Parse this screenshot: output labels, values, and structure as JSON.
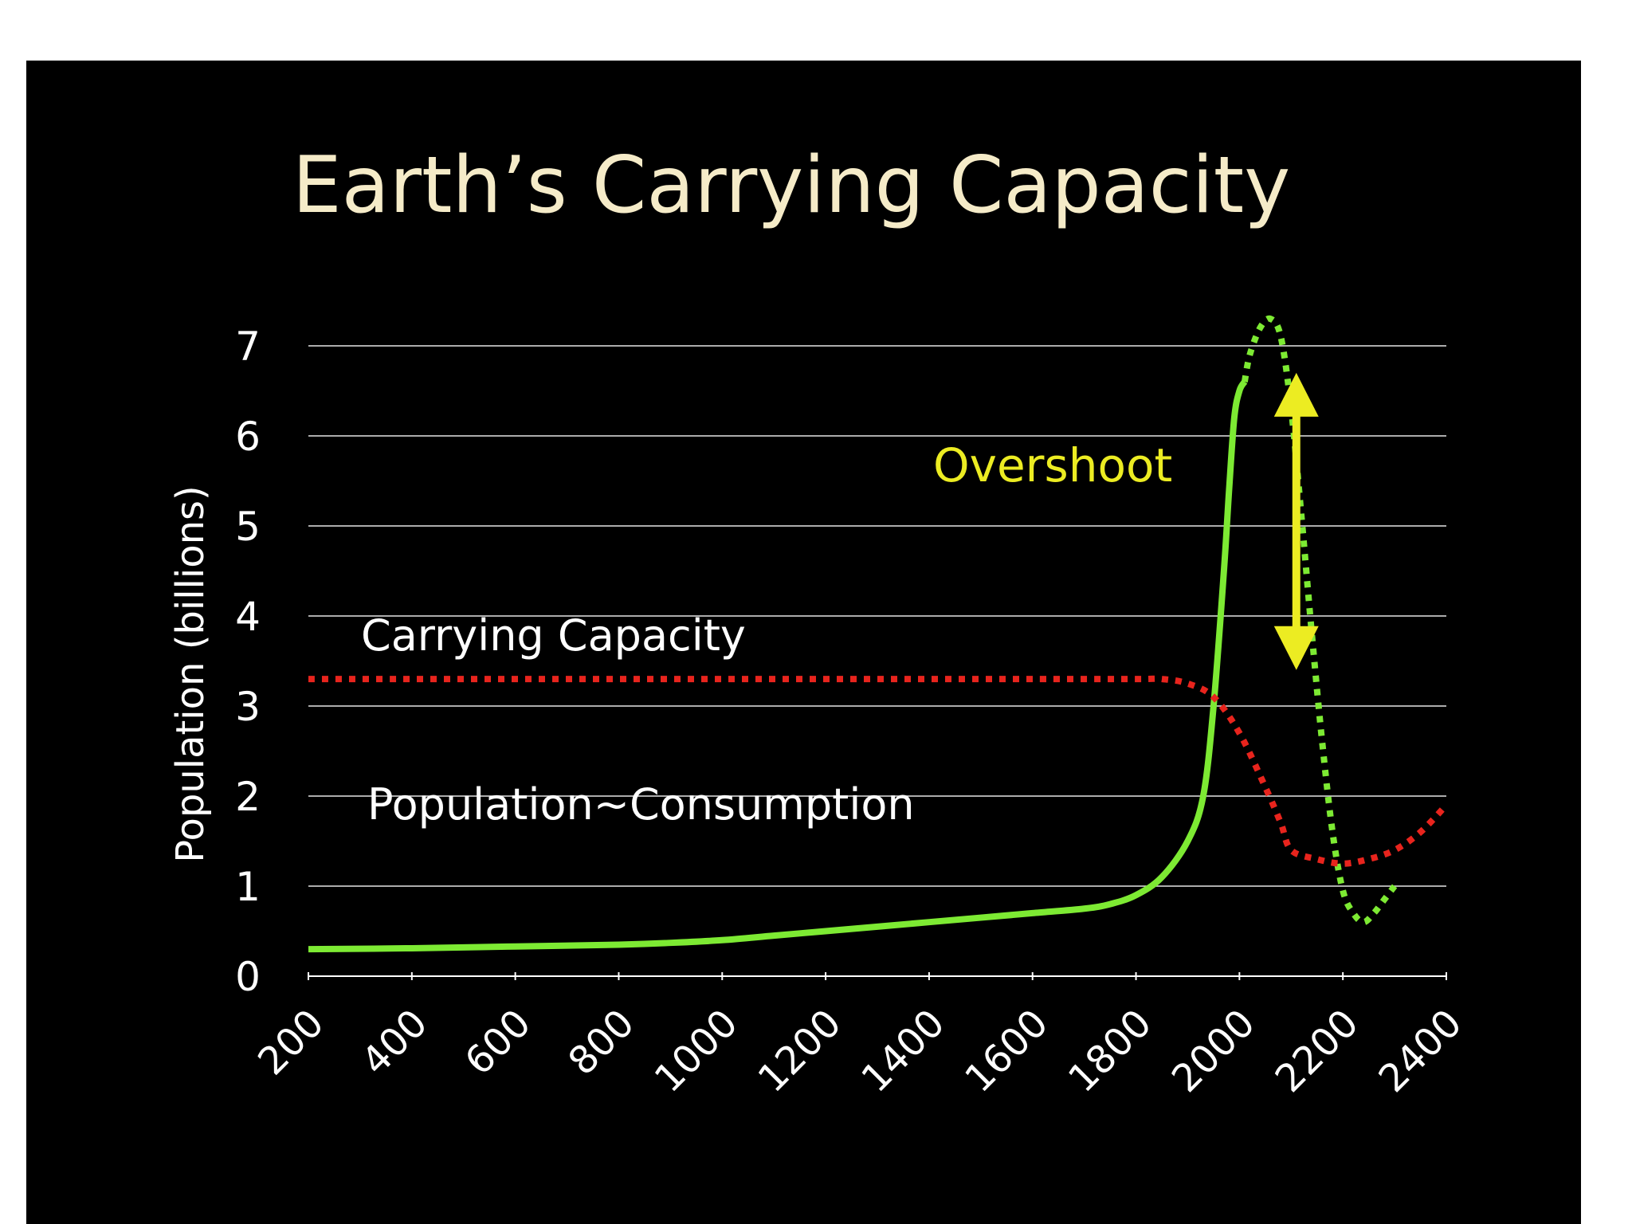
{
  "chart_data": {
    "type": "line",
    "title": "Earth’s Carrying Capacity",
    "ylabel": "Population (billions)",
    "xlabel": "",
    "xlim": [
      200,
      2400
    ],
    "ylim": [
      0,
      7
    ],
    "xticks": [
      "200",
      "400",
      "600",
      "800",
      "1000",
      "1200",
      "1400",
      "1600",
      "1800",
      "2000",
      "2200",
      "2400"
    ],
    "yticks": [
      "0",
      "1",
      "2",
      "3",
      "4",
      "5",
      "6",
      "7"
    ],
    "grid": true,
    "annotations": {
      "carrying_capacity_label": "Carrying Capacity",
      "population_label": "Population~Consumption",
      "overshoot_label": "Overshoot"
    },
    "colors": {
      "background": "#000000",
      "title": "#f5ebc8",
      "text": "#ffffff",
      "population": "#7dea33",
      "carrying_capacity": "#e8241d",
      "overshoot": "#ecec22",
      "grid": "#ffffff"
    },
    "series": [
      {
        "key": "population_actual",
        "style": "solid",
        "x": [
          200,
          400,
          600,
          800,
          900,
          1000,
          1100,
          1200,
          1300,
          1400,
          1500,
          1600,
          1700,
          1750,
          1800,
          1850,
          1900,
          1930,
          1950,
          1970,
          1980,
          1990,
          2000,
          2010
        ],
        "y": [
          0.3,
          0.31,
          0.33,
          0.35,
          0.37,
          0.4,
          0.45,
          0.5,
          0.55,
          0.6,
          0.65,
          0.7,
          0.75,
          0.8,
          0.9,
          1.1,
          1.5,
          2.0,
          3.0,
          4.5,
          5.4,
          6.2,
          6.5,
          6.6
        ]
      },
      {
        "key": "population_projected",
        "style": "dotted",
        "x": [
          2010,
          2020,
          2040,
          2060,
          2080,
          2100,
          2120,
          2140,
          2160,
          2180,
          2200,
          2220,
          2240,
          2260,
          2280,
          2300
        ],
        "y": [
          6.6,
          6.9,
          7.2,
          7.3,
          7.1,
          6.3,
          5.1,
          3.8,
          2.6,
          1.6,
          0.95,
          0.7,
          0.6,
          0.7,
          0.85,
          1.0
        ]
      },
      {
        "key": "carrying_capacity",
        "style": "dotted",
        "x": [
          200,
          400,
          600,
          800,
          1000,
          1200,
          1400,
          1600,
          1800,
          1850,
          1900,
          1950,
          2000,
          2050,
          2080,
          2100,
          2150,
          2200,
          2250,
          2300,
          2350,
          2400
        ],
        "y": [
          3.3,
          3.3,
          3.3,
          3.3,
          3.3,
          3.3,
          3.3,
          3.3,
          3.3,
          3.3,
          3.25,
          3.1,
          2.7,
          2.1,
          1.7,
          1.4,
          1.3,
          1.25,
          1.3,
          1.4,
          1.6,
          1.9
        ]
      }
    ],
    "overshoot_arrow": {
      "x": 2110,
      "y_from": 3.4,
      "y_to": 6.7
    }
  }
}
